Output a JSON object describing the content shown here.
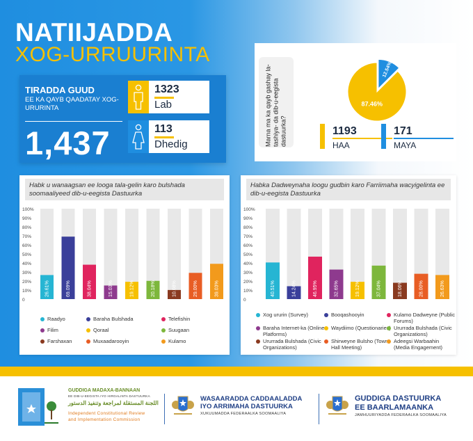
{
  "title": {
    "line1": "NATIIJADDA",
    "line2": "XOG-URRUURINTA"
  },
  "total": {
    "heading": "TIRADDA GUUD",
    "subtitle": "EE KA QAYB QAADATAY XOG-URURINTA",
    "value": "1,437",
    "male": {
      "value": "1323",
      "label": "Lab"
    },
    "female": {
      "value": "113",
      "label": "Dhedig"
    }
  },
  "question": {
    "text": "Marna ma ka qayb gashay la-tashiya- da dib-u-eegista dastuurka?"
  },
  "colors": {
    "blue": "#1f8ee0",
    "yellow": "#f6c000",
    "navy": "#1f3f85",
    "bar_bg": "#e8e8e8"
  },
  "chart_data": [
    {
      "type": "pie",
      "labels": [
        "HAA",
        "MAYA"
      ],
      "values": [
        87.46,
        12.54
      ],
      "value_labels": [
        "87.46%",
        "12.54%"
      ],
      "counts": [
        "1193",
        "171"
      ],
      "colors": [
        "#f6c000",
        "#1f8ee0"
      ]
    },
    {
      "type": "bar",
      "title": "Habk u wanaagsan ee looga tala-gelin karo bulshada soomaaliyeed dib-u-eegista Dastuurka",
      "categories": [
        "Raadyo",
        "Baraha Bulshada",
        "Telefishin",
        "Filim",
        "Qoraal",
        "Suugaan",
        "Farshaxan",
        "Muxaadarooyin",
        "Kulamo"
      ],
      "values": [
        26.61,
        69.09,
        38.04,
        15.03,
        19.12,
        20.18,
        10.08,
        29.0,
        39.03
      ],
      "value_labels": [
        "26.61%",
        "69.09%",
        "38.04%",
        "15.03%",
        "19.12%",
        "20.18%",
        "10.08%",
        "29.00%",
        "39.03%"
      ],
      "colors": [
        "#26b5d3",
        "#3a3f9a",
        "#e0245e",
        "#8e3a8e",
        "#f6c000",
        "#7db73c",
        "#8a3a20",
        "#e85d24",
        "#f29a1c"
      ],
      "yticks": [
        "100%",
        "90%",
        "80%",
        "70%",
        "60%",
        "50%",
        "40%",
        "30%",
        "20%",
        "10%",
        "0"
      ],
      "ylim": [
        0,
        100
      ]
    },
    {
      "type": "bar",
      "title": "Habka Dadweynaha loogu gudbin karo Farriimaha wacyigelinta ee dib-u-eegista Dastuurka",
      "categories": [
        "Xog ururin (Survey)",
        "Booqashooyin",
        "Kulamo Dadweyne (Public Forums)",
        "Baraha Internet-ka (Online Platforms)",
        "Waydiimo (Questionaries)",
        "Ururrada Bulshada (Civic Organizations)",
        "Ururrada Bulshada (Civic Organizations)",
        "Shirweyne Bulsho (Town Hall Meeting)",
        "Adeegsi Warbaahin (Media Engagement)"
      ],
      "values": [
        40.51,
        14.24,
        46.95,
        32.65,
        19.12,
        37.04,
        18.06,
        28.0,
        26.63
      ],
      "value_labels": [
        "40.51%",
        "14.24%",
        "46.95%",
        "32.65%",
        "19.12%",
        "37.04%",
        "18.06%",
        "28.00%",
        "26.63%"
      ],
      "colors": [
        "#26b5d3",
        "#3a3f9a",
        "#e0245e",
        "#8e3a8e",
        "#f6c000",
        "#7db73c",
        "#8a3a20",
        "#e85d24",
        "#f29a1c"
      ],
      "yticks": [
        "100%",
        "90%",
        "80%",
        "70%",
        "60%",
        "50%",
        "40%",
        "30%",
        "20%",
        "10%",
        "0"
      ],
      "ylim": [
        0,
        100
      ]
    }
  ],
  "legend1": [
    {
      "label": "Raadyo",
      "color": "#26b5d3"
    },
    {
      "label": "Baraha Bulshada",
      "color": "#3a3f9a"
    },
    {
      "label": "Telefishin",
      "color": "#e0245e"
    },
    {
      "label": "Filim",
      "color": "#8e3a8e"
    },
    {
      "label": "Qoraal",
      "color": "#f6c000"
    },
    {
      "label": "Suugaan",
      "color": "#7db73c"
    },
    {
      "label": "Farshaxan",
      "color": "#8a3a20"
    },
    {
      "label": "Muxaadarooyin",
      "color": "#e85d24"
    },
    {
      "label": "Kulamo",
      "color": "#f29a1c"
    }
  ],
  "legend2": [
    {
      "label": "Xog ururin (Survey)",
      "color": "#26b5d3"
    },
    {
      "label": "Booqashooyin",
      "color": "#3a3f9a"
    },
    {
      "label": "Kulamo Dadweyne (Public Forums)",
      "color": "#e0245e"
    },
    {
      "label": "Baraha Internet-ka (Online Platforms)",
      "color": "#8e3a8e"
    },
    {
      "label": "Waydiimo (Questionaries)",
      "color": "#f6c000"
    },
    {
      "label": "Ururrada Bulshada (Civic Organizations)",
      "color": "#7db73c"
    },
    {
      "label": "Ururrada Bulshada (Civic Organizations)",
      "color": "#8a3a20"
    },
    {
      "label": "Shirweyne Bulsho (Town Hall Meeting)",
      "color": "#e85d24"
    },
    {
      "label": "Adeegsi Warbaahin (Media Engagement)",
      "color": "#f29a1c"
    }
  ],
  "footer": {
    "org1": {
      "name_line1": "GUDDIGA MADAXA-BANNAAN",
      "name_line2": "EE DIB-U-EEGISTA IYO HIRGALINTA DASTUURKA",
      "arabic": "اللجنة المستقلة لمراجعة وتنفيذ الدستور",
      "english_line1": "Independent Constitutional Review",
      "english_line2": "and Implementation Commission"
    },
    "org2": {
      "name_line1": "WASAARADDA CADDAALADDA",
      "name_line2": "IYO ARRIMAHA DASTUURKA",
      "sub": "XUKUUMADDA FEDERAALKA SOOMAALIYA"
    },
    "org3": {
      "name_line1": "GUDDIGA DASTUURKA",
      "name_line2": "EE BAARLAMAANKA",
      "sub": "JAMHUURIYADDA FEDERAALKA SOOMAALIYA"
    }
  }
}
